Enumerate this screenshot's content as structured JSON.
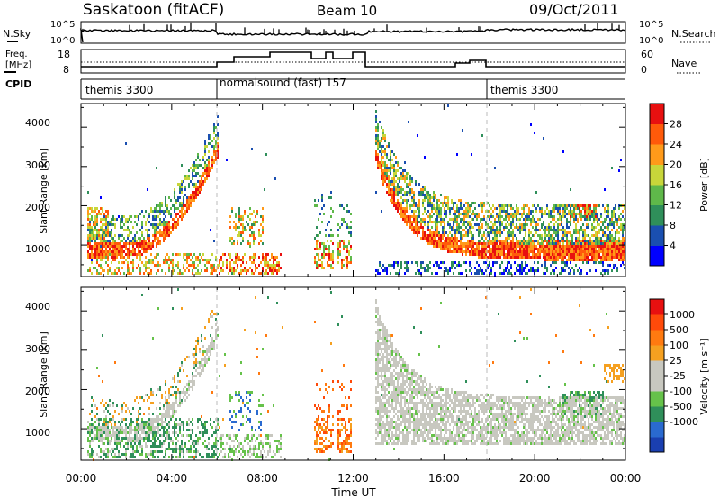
{
  "header": {
    "title": "Saskatoon (fitACF)",
    "beam": "Beam 10",
    "date": "09/Oct/2011"
  },
  "noise_panel": {
    "left_label": "N.Sky",
    "right_label": "N.Search",
    "left_ticks": [
      "10^5",
      "10^0"
    ],
    "right_ticks": [
      "10^5",
      "10^0"
    ]
  },
  "freq_panel": {
    "left_label_1": "Freq.",
    "left_label_2": "[MHz]",
    "right_label": "Nave",
    "left_ticks": [
      "18",
      "8"
    ],
    "right_ticks": [
      "60",
      "0"
    ]
  },
  "cpid_panel": {
    "label": "CPID",
    "segments": [
      {
        "text": "themis 3300"
      },
      {
        "text": "normalsound (fast) 157"
      },
      {
        "text": "themis 3300"
      }
    ]
  },
  "chart_data": [
    {
      "type": "heatmap",
      "name": "power",
      "ylabel": "Slant Range [km]",
      "yticks": [
        "1000",
        "2000",
        "3000",
        "4000"
      ],
      "ylim": [
        200,
        4600
      ],
      "colorbar_label": "Power [dB]",
      "colorbar_ticks": [
        "4",
        "8",
        "12",
        "16",
        "20",
        "24",
        "28"
      ],
      "colors": [
        "#0000ff",
        "#1a4fb0",
        "#2f8f5a",
        "#5fb84a",
        "#c8d63a",
        "#ff9a1a",
        "#ff5a0a",
        "#e81010"
      ]
    },
    {
      "type": "heatmap",
      "name": "velocity",
      "ylabel": "Slant Range [km]",
      "yticks": [
        "1000",
        "2000",
        "3000",
        "4000"
      ],
      "ylim": [
        200,
        4600
      ],
      "colorbar_label": "Velocity [m s⁻¹]",
      "colorbar_ticks": [
        "1000",
        "500",
        "100",
        "25",
        "-25",
        "-100",
        "-500",
        "-1000"
      ],
      "colors": [
        "#1a3fb0",
        "#2a6ad0",
        "#2f8f5a",
        "#66c24a",
        "#c8c8c0",
        "#c8c8c0",
        "#f5a020",
        "#ff7a10",
        "#ff4a0a",
        "#e81010"
      ]
    }
  ],
  "xaxis": {
    "label": "Time UT",
    "ticks": [
      "00:00",
      "04:00",
      "08:00",
      "12:00",
      "16:00",
      "20:00",
      "00:00"
    ]
  }
}
